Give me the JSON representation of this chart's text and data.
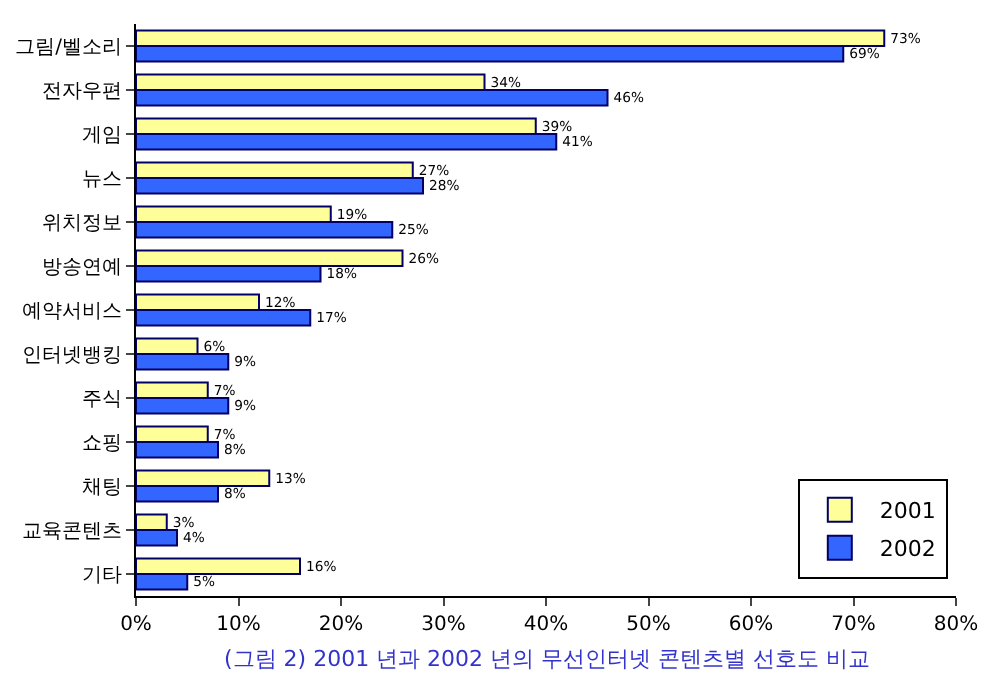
{
  "chart_data": {
    "type": "bar",
    "orientation": "horizontal",
    "categories": [
      "그림/벨소리",
      "전자우편",
      "게임",
      "뉴스",
      "위치정보",
      "방송연예",
      "예약서비스",
      "인터넷뱅킹",
      "주식",
      "쇼핑",
      "채팅",
      "교육콘텐츠",
      "기타"
    ],
    "series": [
      {
        "name": "2001",
        "color": "#ffff99",
        "values": [
          73,
          34,
          39,
          27,
          19,
          26,
          12,
          6,
          7,
          7,
          13,
          3,
          16
        ],
        "value_labels": [
          "73%",
          "34%",
          "39%",
          "27%",
          "19%",
          "26%",
          "12%",
          "6%",
          "7%",
          "7%",
          "13%",
          "3%",
          "16%"
        ]
      },
      {
        "name": "2002",
        "color": "#3366ff",
        "values": [
          69,
          46,
          41,
          28,
          25,
          18,
          17,
          9,
          9,
          8,
          8,
          4,
          5
        ],
        "value_labels": [
          "69%",
          "46%",
          "41%",
          "28%",
          "25%",
          "18%",
          "17%",
          "9%",
          "9%",
          "8%",
          "8%",
          "4%",
          "5%"
        ]
      }
    ],
    "xlim": [
      0,
      80
    ],
    "xticks": [
      {
        "value": 0,
        "label": "0%"
      },
      {
        "value": 10,
        "label": "10%"
      },
      {
        "value": 20,
        "label": "20%"
      },
      {
        "value": 30,
        "label": "30%"
      },
      {
        "value": 40,
        "label": "40%"
      },
      {
        "value": 50,
        "label": "50%"
      },
      {
        "value": 60,
        "label": "60%"
      },
      {
        "value": 70,
        "label": "70%"
      },
      {
        "value": 80,
        "label": "80%"
      }
    ],
    "legend": "bottom right",
    "annotations": [
      "(그림 2) 2001 년과 2002 년의 무선인터넷 콘텐츠별 선호도 비교"
    ]
  }
}
